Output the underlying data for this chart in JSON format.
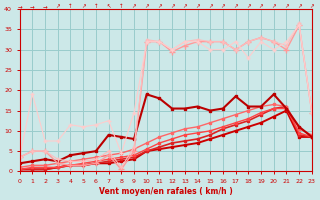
{
  "xlabel": "Vent moyen/en rafales ( km/h )",
  "bg_color": "#cce8e8",
  "grid_color": "#99cccc",
  "label_color": "#cc0000",
  "spine_color": "#cc0000",
  "xlim": [
    0,
    23
  ],
  "ylim": [
    0,
    40
  ],
  "xticks": [
    0,
    1,
    2,
    3,
    4,
    5,
    6,
    7,
    8,
    9,
    10,
    11,
    12,
    13,
    14,
    15,
    16,
    17,
    18,
    19,
    20,
    21,
    22,
    23
  ],
  "yticks": [
    0,
    5,
    10,
    15,
    20,
    25,
    30,
    35,
    40
  ],
  "series": [
    {
      "x": [
        0,
        1,
        2,
        3,
        4,
        5,
        6,
        7,
        8,
        9,
        10,
        11,
        12,
        13,
        14,
        15,
        16,
        17,
        18,
        19,
        20,
        21,
        22,
        23
      ],
      "y": [
        0.5,
        0.5,
        0.5,
        1.0,
        1.5,
        1.5,
        2.0,
        2.0,
        2.5,
        3.0,
        5.0,
        5.5,
        6.0,
        6.5,
        7.0,
        8.0,
        9.0,
        10.0,
        11.0,
        12.0,
        13.5,
        15.0,
        8.5,
        8.5
      ],
      "color": "#cc0000",
      "lw": 1.4,
      "marker": "s",
      "ms": 2.0
    },
    {
      "x": [
        0,
        1,
        2,
        3,
        4,
        5,
        6,
        7,
        8,
        9,
        10,
        11,
        12,
        13,
        14,
        15,
        16,
        17,
        18,
        19,
        20,
        21,
        22,
        23
      ],
      "y": [
        0.5,
        0.5,
        0.5,
        1.0,
        1.5,
        1.5,
        2.0,
        2.5,
        3.0,
        3.5,
        5.0,
        6.0,
        7.0,
        7.5,
        8.0,
        9.0,
        10.5,
        11.5,
        12.5,
        14.0,
        15.5,
        16.0,
        9.0,
        8.5
      ],
      "color": "#dd2222",
      "lw": 1.2,
      "marker": "s",
      "ms": 1.8
    },
    {
      "x": [
        0,
        1,
        2,
        3,
        4,
        5,
        6,
        7,
        8,
        9,
        10,
        11,
        12,
        13,
        14,
        15,
        16,
        17,
        18,
        19,
        20,
        21,
        22,
        23
      ],
      "y": [
        0.5,
        1.0,
        1.0,
        1.0,
        1.5,
        2.0,
        2.5,
        3.0,
        3.5,
        4.0,
        5.5,
        7.0,
        8.0,
        9.0,
        9.5,
        10.0,
        11.0,
        12.0,
        13.0,
        14.5,
        15.5,
        15.5,
        9.5,
        8.5
      ],
      "color": "#ff4444",
      "lw": 1.0,
      "marker": "s",
      "ms": 1.8
    },
    {
      "x": [
        0,
        1,
        2,
        3,
        4,
        5,
        6,
        7,
        8,
        9,
        10,
        11,
        12,
        13,
        14,
        15,
        16,
        17,
        18,
        19,
        20,
        21,
        22,
        23
      ],
      "y": [
        1.0,
        1.5,
        1.5,
        2.0,
        2.5,
        3.0,
        3.5,
        4.0,
        4.5,
        5.5,
        7.0,
        8.5,
        9.5,
        10.5,
        11.0,
        12.0,
        13.0,
        14.0,
        15.0,
        16.0,
        16.5,
        16.0,
        10.5,
        9.0
      ],
      "color": "#ff6666",
      "lw": 1.0,
      "marker": "s",
      "ms": 1.8
    },
    {
      "x": [
        0,
        1,
        2,
        3,
        4,
        5,
        6,
        7,
        8,
        9,
        10,
        11,
        12,
        13,
        14,
        15,
        16,
        17,
        18,
        19,
        20,
        21,
        22,
        23
      ],
      "y": [
        2.0,
        2.5,
        3.0,
        2.5,
        4.0,
        4.5,
        5.0,
        9.0,
        8.5,
        8.0,
        19.0,
        18.0,
        15.5,
        15.5,
        16.0,
        15.0,
        15.5,
        18.5,
        16.0,
        16.0,
        19.0,
        15.5,
        11.0,
        8.5
      ],
      "color": "#bb0000",
      "lw": 1.5,
      "marker": "s",
      "ms": 2.0
    },
    {
      "x": [
        0,
        1,
        2,
        3,
        4,
        5,
        6,
        7,
        8,
        9,
        10,
        11,
        12,
        13,
        14,
        15,
        16,
        17,
        18,
        19,
        20,
        21,
        22,
        23
      ],
      "y": [
        3.5,
        5.0,
        5.0,
        2.0,
        1.5,
        1.5,
        2.0,
        4.0,
        0.5,
        5.0,
        32.0,
        32.0,
        29.5,
        31.0,
        32.0,
        32.0,
        32.0,
        30.0,
        32.0,
        33.0,
        32.0,
        30.0,
        36.0,
        14.5
      ],
      "color": "#ff9999",
      "lw": 1.0,
      "marker": "+",
      "ms": 4
    },
    {
      "x": [
        0,
        1,
        2,
        3,
        4,
        5,
        6,
        7,
        8,
        9,
        10,
        11,
        12,
        13,
        14,
        15,
        16,
        17,
        18,
        19,
        20,
        21,
        22,
        23
      ],
      "y": [
        3.5,
        5.0,
        5.0,
        3.0,
        2.5,
        2.5,
        3.0,
        5.0,
        1.0,
        6.0,
        32.5,
        32.0,
        30.0,
        32.0,
        32.5,
        32.0,
        32.0,
        30.0,
        32.0,
        33.0,
        32.0,
        31.0,
        36.5,
        14.5
      ],
      "color": "#ffbbbb",
      "lw": 0.8,
      "marker": "+",
      "ms": 3.5
    },
    {
      "x": [
        0,
        1,
        2,
        3,
        4,
        5,
        6,
        7,
        8,
        9,
        10,
        11,
        12,
        13,
        14,
        15,
        16,
        17,
        18,
        19,
        20,
        21,
        22,
        23
      ],
      "y": [
        3.5,
        19.0,
        7.5,
        7.5,
        11.5,
        11.0,
        11.5,
        12.5,
        4.5,
        14.5,
        32.0,
        32.0,
        30.0,
        32.0,
        32.0,
        30.0,
        30.0,
        32.0,
        28.0,
        32.0,
        30.0,
        32.0,
        36.0,
        14.5
      ],
      "color": "#ffcccc",
      "lw": 0.8,
      "marker": "+",
      "ms": 3
    }
  ]
}
